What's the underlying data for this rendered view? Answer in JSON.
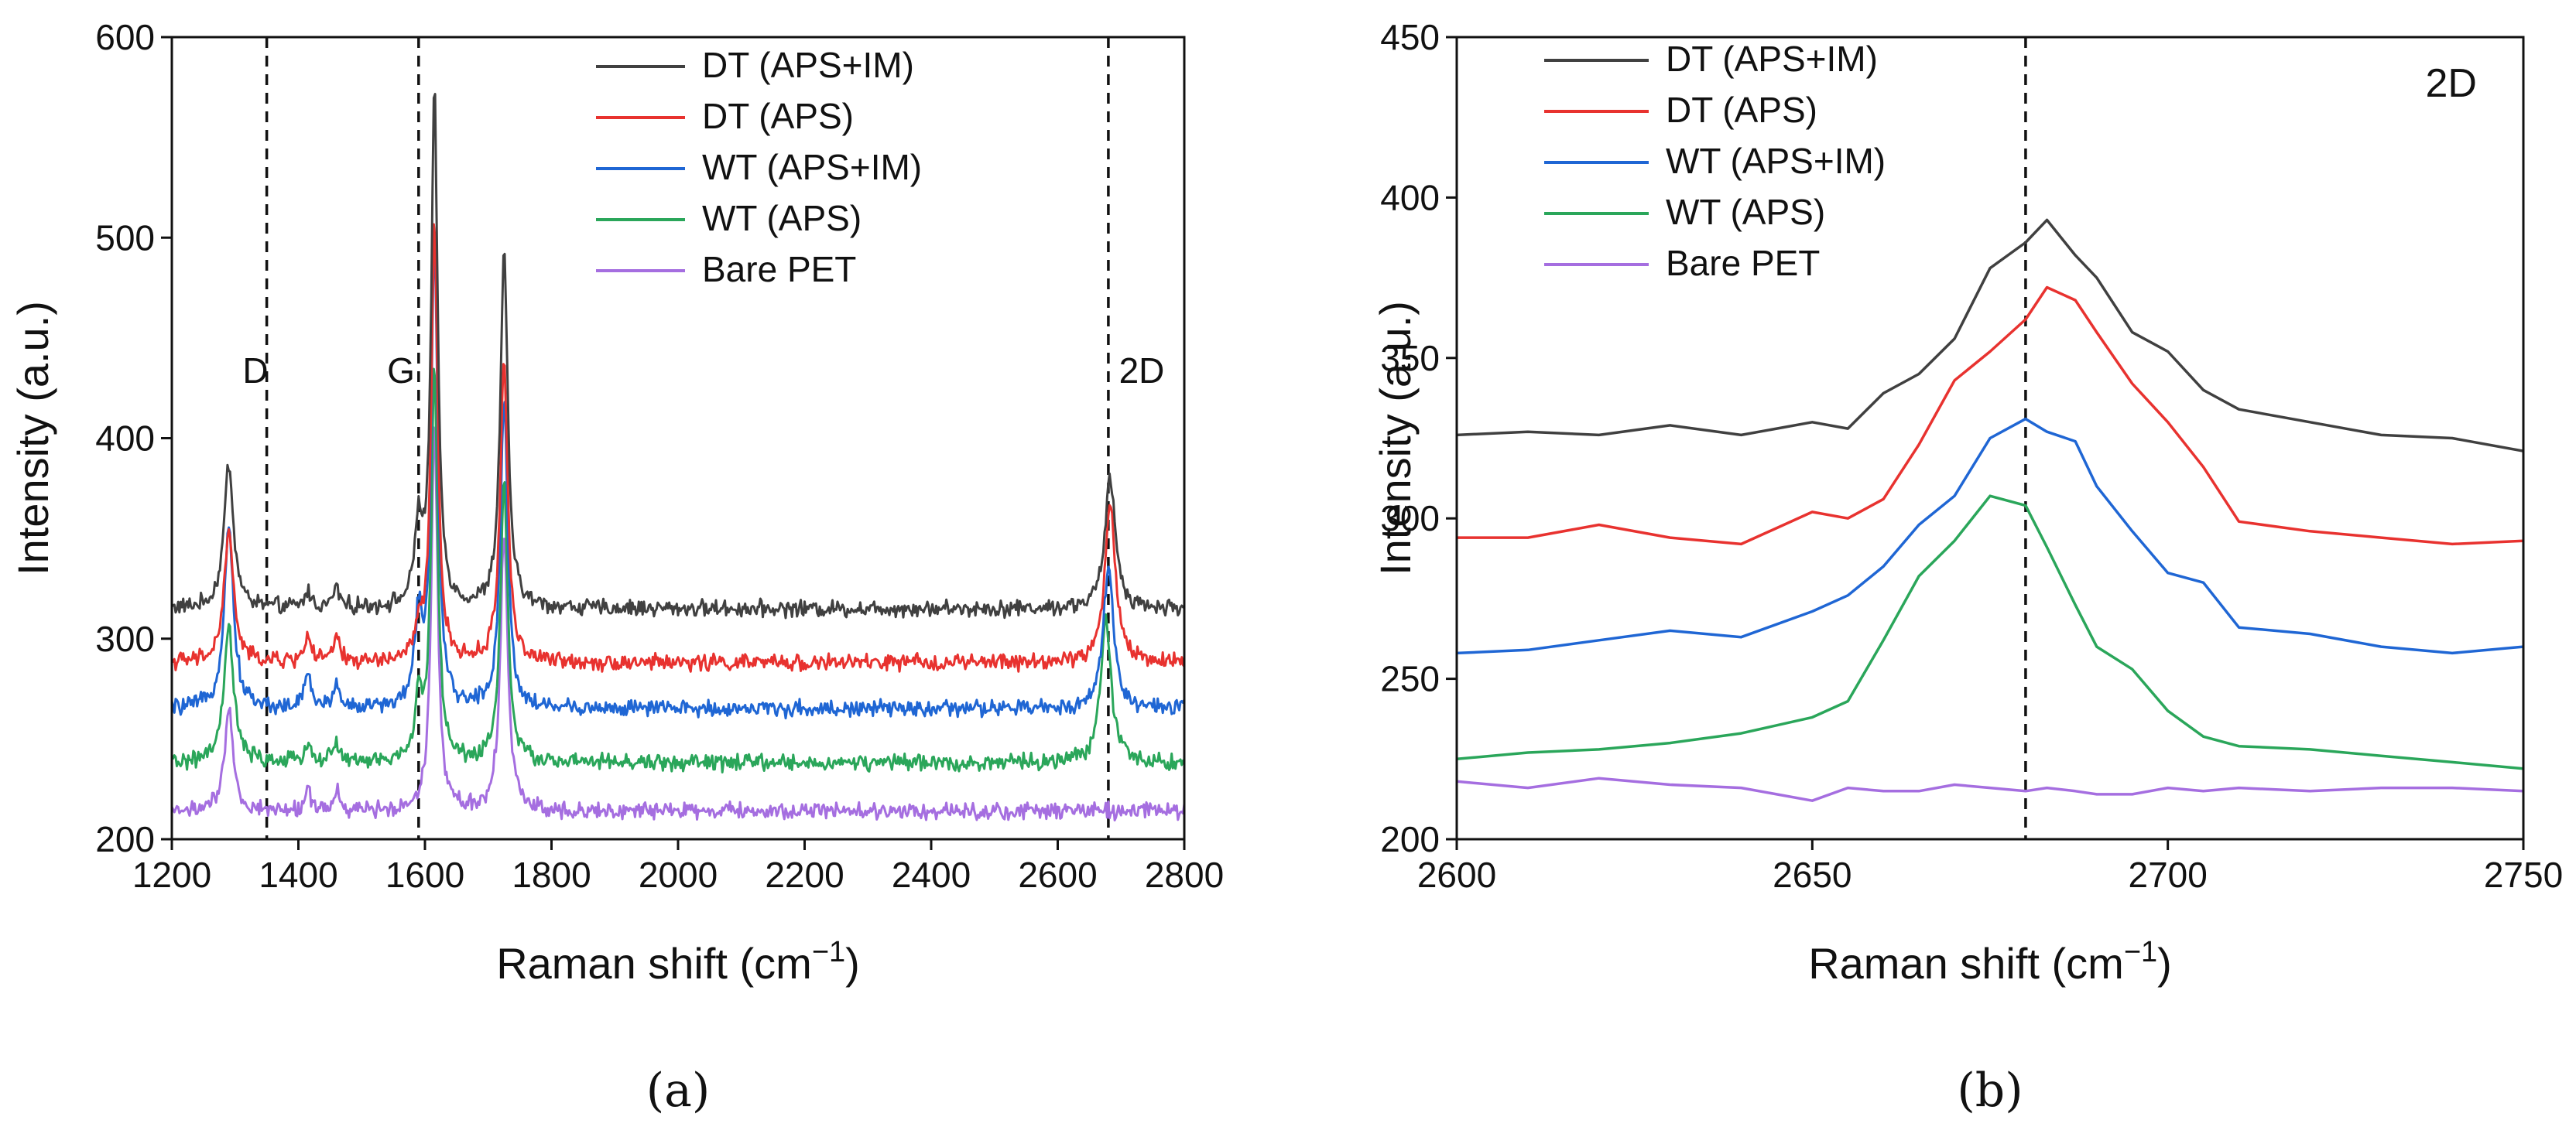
{
  "colors": {
    "DT (APS+IM)": "#404040",
    "DT (APS)": "#e8322f",
    "WT (APS+IM)": "#1f66d4",
    "WT (APS)": "#2aa65a",
    "Bare PET": "#a56ee0"
  },
  "chart_data": [
    {
      "type": "line",
      "panel_label": "(a)",
      "xlabel": "Raman shift (cm",
      "xlabel_sup": "−1",
      "xlabel_close": ")",
      "ylabel": "Intensity (a.u.)",
      "xlim": [
        1200,
        2800
      ],
      "ylim": [
        200,
        600
      ],
      "xticks": [
        "1200",
        "1400",
        "1600",
        "1800",
        "2000",
        "2200",
        "2400",
        "2600",
        "2800"
      ],
      "yticks": [
        "200",
        "300",
        "400",
        "500",
        "600"
      ],
      "legend": [
        "DT (APS+IM)",
        "DT (APS)",
        "WT (APS+IM)",
        "WT (APS)",
        "Bare PET"
      ],
      "vlines": [
        {
          "label": "D",
          "x": 1350
        },
        {
          "label": "G",
          "x": 1590
        },
        {
          "label": "2D",
          "x": 2680
        }
      ],
      "series": [
        {
          "name": "DT (APS+IM)",
          "baseline": 315,
          "peaks": [
            [
              1290,
              72,
              9
            ],
            [
              1415,
              8,
              6
            ],
            [
              1460,
              10,
              6
            ],
            [
              1590,
              40,
              7
            ],
            [
              1615,
              255,
              6
            ],
            [
              1725,
              177,
              7
            ],
            [
              2683,
              65,
              10
            ]
          ]
        },
        {
          "name": "DT (APS)",
          "baseline": 288,
          "peaks": [
            [
              1290,
              65,
              9
            ],
            [
              1415,
              14,
              6
            ],
            [
              1460,
              12,
              6
            ],
            [
              1590,
              15,
              7
            ],
            [
              1615,
              220,
              6
            ],
            [
              1725,
              152,
              7
            ],
            [
              2683,
              80,
              10
            ]
          ]
        },
        {
          "name": "WT (APS+IM)",
          "baseline": 265,
          "peaks": [
            [
              1290,
              90,
              9
            ],
            [
              1415,
              18,
              6
            ],
            [
              1460,
              12,
              6
            ],
            [
              1590,
              45,
              7
            ],
            [
              1615,
              235,
              6
            ],
            [
              1725,
              155,
              7
            ],
            [
              2680,
              70,
              10
            ]
          ]
        },
        {
          "name": "WT (APS)",
          "baseline": 238,
          "peaks": [
            [
              1290,
              68,
              9
            ],
            [
              1415,
              10,
              6
            ],
            [
              1460,
              10,
              6
            ],
            [
              1590,
              30,
              7
            ],
            [
              1615,
              198,
              6
            ],
            [
              1725,
              140,
              7
            ],
            [
              2676,
              72,
              10
            ]
          ]
        },
        {
          "name": "Bare PET",
          "baseline": 214,
          "peaks": [
            [
              1290,
              50,
              8
            ],
            [
              1415,
              12,
              5
            ],
            [
              1460,
              10,
              5
            ],
            [
              1615,
              195,
              6
            ],
            [
              1725,
              140,
              7
            ]
          ]
        }
      ]
    },
    {
      "type": "line",
      "panel_label": "(b)",
      "title": "2D",
      "xlabel": "Raman shift (cm",
      "xlabel_sup": "−1",
      "xlabel_close": ")",
      "ylabel": "Intensity (a.u.)",
      "xlim": [
        2600,
        2750
      ],
      "ylim": [
        200,
        450
      ],
      "xticks": [
        "2600",
        "2650",
        "2700",
        "2750"
      ],
      "yticks": [
        "200",
        "250",
        "300",
        "350",
        "400",
        "450"
      ],
      "legend": [
        "DT (APS+IM)",
        "DT (APS)",
        "WT (APS+IM)",
        "WT (APS)",
        "Bare PET"
      ],
      "vlines": [
        {
          "label": "",
          "x": 2680
        }
      ],
      "series": [
        {
          "name": "DT (APS+IM)",
          "x": [
            2600,
            2610,
            2620,
            2630,
            2640,
            2650,
            2655,
            2660,
            2665,
            2670,
            2675,
            2680,
            2683,
            2687,
            2690,
            2695,
            2700,
            2705,
            2710,
            2720,
            2730,
            2740,
            2750
          ],
          "y": [
            326,
            327,
            326,
            329,
            326,
            330,
            328,
            339,
            345,
            356,
            378,
            386,
            393,
            382,
            375,
            358,
            352,
            340,
            334,
            330,
            326,
            325,
            321
          ]
        },
        {
          "name": "DT (APS)",
          "x": [
            2600,
            2610,
            2620,
            2630,
            2640,
            2650,
            2655,
            2660,
            2665,
            2670,
            2675,
            2680,
            2683,
            2687,
            2690,
            2695,
            2700,
            2705,
            2710,
            2720,
            2730,
            2740,
            2750
          ],
          "y": [
            294,
            294,
            298,
            294,
            292,
            302,
            300,
            306,
            323,
            343,
            352,
            362,
            372,
            368,
            358,
            342,
            330,
            316,
            299,
            296,
            294,
            292,
            293
          ]
        },
        {
          "name": "WT (APS+IM)",
          "x": [
            2600,
            2610,
            2620,
            2630,
            2640,
            2650,
            2655,
            2660,
            2665,
            2670,
            2675,
            2680,
            2683,
            2687,
            2690,
            2695,
            2700,
            2705,
            2710,
            2720,
            2730,
            2740,
            2750
          ],
          "y": [
            258,
            259,
            262,
            265,
            263,
            271,
            276,
            285,
            298,
            307,
            325,
            331,
            327,
            324,
            310,
            296,
            283,
            280,
            266,
            264,
            260,
            258,
            260
          ]
        },
        {
          "name": "WT (APS)",
          "x": [
            2600,
            2610,
            2620,
            2630,
            2640,
            2650,
            2655,
            2660,
            2665,
            2670,
            2675,
            2680,
            2683,
            2687,
            2690,
            2695,
            2700,
            2705,
            2710,
            2720,
            2730,
            2740,
            2750
          ],
          "y": [
            225,
            227,
            228,
            230,
            233,
            238,
            243,
            262,
            282,
            293,
            307,
            304,
            291,
            273,
            260,
            253,
            240,
            232,
            229,
            228,
            226,
            224,
            222
          ]
        },
        {
          "name": "Bare PET",
          "x": [
            2600,
            2610,
            2620,
            2630,
            2640,
            2650,
            2655,
            2660,
            2665,
            2670,
            2675,
            2680,
            2683,
            2687,
            2690,
            2695,
            2700,
            2705,
            2710,
            2720,
            2730,
            2740,
            2750
          ],
          "y": [
            218,
            216,
            219,
            217,
            216,
            212,
            216,
            215,
            215,
            217,
            216,
            215,
            216,
            215,
            214,
            214,
            216,
            215,
            216,
            215,
            216,
            216,
            215
          ]
        }
      ]
    }
  ]
}
